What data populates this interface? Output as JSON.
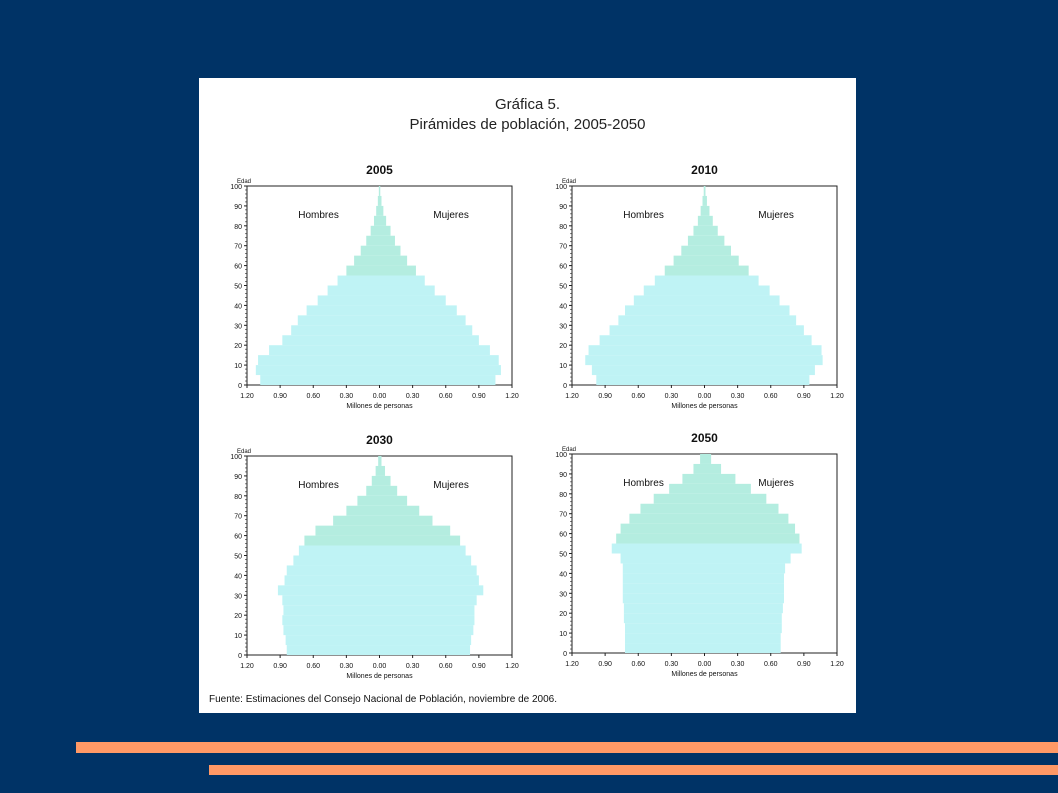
{
  "figure": {
    "title": "Gráfica 5.",
    "subtitle": "Pirámides de población, 2005-2050",
    "source": "Fuente: Estimaciones del Consejo Nacional de Población, noviembre de 2006."
  },
  "colors": {
    "background": "#003366",
    "stripe": "#ff9966",
    "bar_fill": "#bff3f5",
    "upper_fill": "#b4ede0"
  },
  "chart_data": [
    {
      "type": "bar",
      "title": "2005",
      "ylabel": "Edad",
      "xlabel": "Millones de personas",
      "left_label": "Hombres",
      "right_label": "Mujeres",
      "xlim": [
        -1.2,
        1.2
      ],
      "ylim": [
        0,
        100
      ],
      "xticks": [
        "1.20",
        "0.90",
        "0.60",
        "0.30",
        "0.00",
        "0.30",
        "0.60",
        "0.90",
        "1.20"
      ],
      "yticks": [
        "0",
        "10",
        "20",
        "30",
        "40",
        "50",
        "60",
        "70",
        "80",
        "90",
        "100"
      ],
      "ages": [
        0,
        5,
        10,
        15,
        20,
        25,
        30,
        35,
        40,
        45,
        50,
        55,
        60,
        65,
        70,
        75,
        80,
        85,
        90,
        95,
        100
      ],
      "series": [
        {
          "name": "Hombres",
          "values": [
            1.08,
            1.12,
            1.1,
            1.0,
            0.88,
            0.8,
            0.74,
            0.66,
            0.56,
            0.47,
            0.38,
            0.3,
            0.23,
            0.17,
            0.12,
            0.08,
            0.05,
            0.03,
            0.015,
            0.006,
            0.001
          ]
        },
        {
          "name": "Mujeres",
          "values": [
            1.05,
            1.1,
            1.08,
            1.0,
            0.9,
            0.84,
            0.78,
            0.7,
            0.6,
            0.5,
            0.41,
            0.33,
            0.25,
            0.19,
            0.14,
            0.1,
            0.06,
            0.035,
            0.018,
            0.007,
            0.001
          ]
        }
      ]
    },
    {
      "type": "bar",
      "title": "2010",
      "ylabel": "Edad",
      "xlabel": "Millones de personas",
      "left_label": "Hombres",
      "right_label": "Mujeres",
      "xlim": [
        -1.2,
        1.2
      ],
      "ylim": [
        0,
        100
      ],
      "xticks": [
        "1.20",
        "0.90",
        "0.60",
        "0.30",
        "0.00",
        "0.30",
        "0.60",
        "0.90",
        "1.20"
      ],
      "yticks": [
        "0",
        "10",
        "20",
        "30",
        "40",
        "50",
        "60",
        "70",
        "80",
        "90",
        "100"
      ],
      "ages": [
        0,
        5,
        10,
        15,
        20,
        25,
        30,
        35,
        40,
        45,
        50,
        55,
        60,
        65,
        70,
        75,
        80,
        85,
        90,
        95,
        100
      ],
      "series": [
        {
          "name": "Hombres",
          "values": [
            0.98,
            1.02,
            1.08,
            1.05,
            0.95,
            0.86,
            0.78,
            0.72,
            0.64,
            0.55,
            0.45,
            0.36,
            0.28,
            0.21,
            0.15,
            0.1,
            0.06,
            0.035,
            0.018,
            0.007,
            0.001
          ]
        },
        {
          "name": "Mujeres",
          "values": [
            0.95,
            1.0,
            1.07,
            1.06,
            0.97,
            0.9,
            0.83,
            0.77,
            0.68,
            0.59,
            0.49,
            0.4,
            0.31,
            0.24,
            0.18,
            0.12,
            0.075,
            0.045,
            0.022,
            0.009,
            0.001
          ]
        }
      ]
    },
    {
      "type": "bar",
      "title": "2030",
      "ylabel": "Edad",
      "xlabel": "Millones de personas",
      "left_label": "Hombres",
      "right_label": "Mujeres",
      "xlim": [
        -1.2,
        1.2
      ],
      "ylim": [
        0,
        100
      ],
      "xticks": [
        "1.20",
        "0.90",
        "0.60",
        "0.30",
        "0.00",
        "0.30",
        "0.60",
        "0.90",
        "1.20"
      ],
      "yticks": [
        "0",
        "10",
        "20",
        "30",
        "40",
        "50",
        "60",
        "70",
        "80",
        "90",
        "100"
      ],
      "ages": [
        0,
        5,
        10,
        15,
        20,
        25,
        30,
        35,
        40,
        45,
        50,
        55,
        60,
        65,
        70,
        75,
        80,
        85,
        90,
        95,
        100
      ],
      "series": [
        {
          "name": "Hombres",
          "values": [
            0.84,
            0.85,
            0.87,
            0.88,
            0.87,
            0.88,
            0.92,
            0.86,
            0.84,
            0.78,
            0.73,
            0.68,
            0.58,
            0.42,
            0.3,
            0.2,
            0.12,
            0.07,
            0.035,
            0.012,
            0.002
          ]
        },
        {
          "name": "Mujeres",
          "values": [
            0.82,
            0.83,
            0.85,
            0.86,
            0.86,
            0.88,
            0.94,
            0.9,
            0.88,
            0.83,
            0.78,
            0.73,
            0.64,
            0.48,
            0.36,
            0.25,
            0.16,
            0.1,
            0.05,
            0.018,
            0.003
          ]
        }
      ]
    },
    {
      "type": "bar",
      "title": "2050",
      "ylabel": "Edad",
      "xlabel": "Millones de personas",
      "left_label": "Hombres",
      "right_label": "Mujeres",
      "xlim": [
        -1.2,
        1.2
      ],
      "ylim": [
        0,
        100
      ],
      "xticks": [
        "1.20",
        "0.90",
        "0.60",
        "0.30",
        "0.00",
        "0.30",
        "0.60",
        "0.90",
        "1.20"
      ],
      "yticks": [
        "0",
        "10",
        "20",
        "30",
        "40",
        "50",
        "60",
        "70",
        "80",
        "90",
        "100"
      ],
      "ages": [
        0,
        5,
        10,
        15,
        20,
        25,
        30,
        35,
        40,
        45,
        50,
        55,
        60,
        65,
        70,
        75,
        80,
        85,
        90,
        95,
        100
      ],
      "series": [
        {
          "name": "Hombres",
          "values": [
            0.72,
            0.72,
            0.72,
            0.73,
            0.73,
            0.74,
            0.74,
            0.74,
            0.74,
            0.76,
            0.84,
            0.8,
            0.76,
            0.68,
            0.58,
            0.46,
            0.32,
            0.2,
            0.1,
            0.04,
            0.01
          ]
        },
        {
          "name": "Mujeres",
          "values": [
            0.69,
            0.69,
            0.7,
            0.7,
            0.71,
            0.72,
            0.72,
            0.72,
            0.73,
            0.78,
            0.88,
            0.86,
            0.82,
            0.76,
            0.67,
            0.56,
            0.42,
            0.28,
            0.15,
            0.06,
            0.015
          ]
        }
      ]
    }
  ]
}
